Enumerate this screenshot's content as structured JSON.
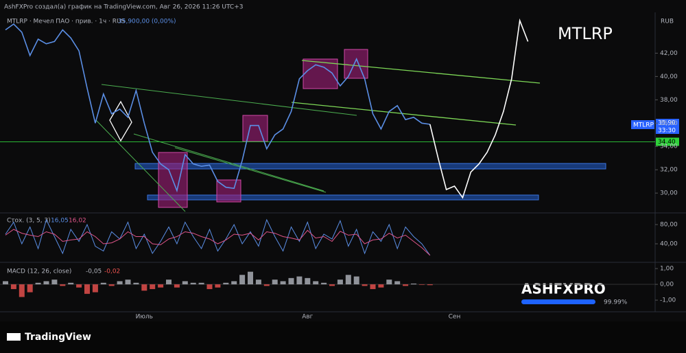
{
  "header": {
    "credit": "AshFXPro создал(а) график на TradingView.com, Авг 26, 2026 11:26 UTC+3",
    "currency": "RUB",
    "symbol": "MTLRP",
    "last_price": "35,90",
    "change": "0,00 (0,00%)",
    "countdown": "33:30",
    "level_label": "34,40"
  },
  "footer": {
    "logo": "TradingView",
    "badge": "ASHFXPRO",
    "badge_pct": "99.99%"
  },
  "chart_data": [
    {
      "type": "line",
      "title": "MTLRP · Мечел ПАО · прив. · 1ч · RUS",
      "annotation": "MTLRP",
      "categories": [
        null,
        null,
        null,
        null,
        null,
        null,
        null,
        null,
        null,
        null,
        null,
        null,
        null,
        null,
        null,
        null,
        null,
        "Июль",
        null,
        null,
        null,
        null,
        null,
        null,
        null,
        null,
        null,
        null,
        null,
        null,
        null,
        null,
        null,
        null,
        null,
        null,
        null,
        "Авг",
        null,
        null,
        null,
        null,
        null,
        null,
        null,
        null,
        null,
        null,
        null,
        null,
        null,
        null,
        null,
        null,
        null,
        "Сен",
        null,
        null,
        null,
        null,
        null,
        null,
        null,
        null,
        null
      ],
      "series": [
        {
          "color": "#5b8fe6",
          "values": [
            44.0,
            44.5,
            43.8,
            41.8,
            43.2,
            42.8,
            43.0,
            44.0,
            43.3,
            42.2,
            39.0,
            36.0,
            38.5,
            36.8,
            37.2,
            36.5,
            38.8,
            36.0,
            33.5,
            32.5,
            32.0,
            30.2,
            33.3,
            32.5,
            32.3,
            32.4,
            31.0,
            30.5,
            30.4,
            32.8,
            35.8,
            35.8,
            33.8,
            35.0,
            35.5,
            37.0,
            39.8,
            40.5,
            41.0,
            40.8,
            40.3,
            39.2,
            40.0,
            41.5,
            39.8,
            36.8,
            35.5,
            37.0,
            37.5,
            36.3,
            36.5,
            36.0,
            35.9,
            null,
            null,
            null,
            null,
            null,
            null,
            null,
            null,
            null,
            null,
            null,
            null
          ]
        },
        {
          "color": "#ffffff",
          "values": [
            null,
            null,
            null,
            null,
            null,
            null,
            null,
            null,
            null,
            null,
            null,
            null,
            null,
            null,
            null,
            null,
            null,
            null,
            null,
            null,
            null,
            null,
            null,
            null,
            null,
            null,
            null,
            null,
            null,
            null,
            null,
            null,
            null,
            null,
            null,
            null,
            null,
            null,
            null,
            null,
            null,
            null,
            null,
            null,
            null,
            null,
            null,
            null,
            null,
            null,
            null,
            null,
            35.9,
            33.0,
            30.3,
            30.6,
            29.6,
            31.8,
            32.5,
            33.5,
            35.0,
            37.0,
            39.8,
            44.8,
            43.0
          ]
        }
      ],
      "level": 34.4,
      "ylim": [
        28.3,
        45.5
      ],
      "yticks": [
        {
          "value": 30,
          "label": "30,00"
        },
        {
          "value": 32,
          "label": "32,00"
        },
        {
          "value": 34,
          "label": "34,00"
        },
        {
          "value": 36,
          "label": "36,00"
        },
        {
          "value": 38,
          "label": "38,00"
        },
        {
          "value": 40,
          "label": "40,00"
        },
        {
          "value": 42,
          "label": "42,00"
        }
      ]
    },
    {
      "type": "line",
      "title": "Стох. (3, 5, 3)",
      "legend_values": [
        "16,05",
        "16,02"
      ],
      "series": [
        {
          "color": "#5b8fe6",
          "values": [
            60,
            85,
            40,
            75,
            30,
            90,
            55,
            20,
            70,
            45,
            80,
            35,
            25,
            65,
            50,
            85,
            30,
            60,
            20,
            45,
            75,
            40,
            85,
            55,
            30,
            70,
            25,
            50,
            80,
            40,
            65,
            35,
            90,
            55,
            25,
            75,
            45,
            85,
            30,
            60,
            50,
            88,
            35,
            70,
            20,
            65,
            45,
            80,
            30,
            75,
            55,
            40,
            16.05
          ]
        },
        {
          "color": "#e0558a",
          "values": [
            58,
            70,
            62,
            58,
            55,
            65,
            60,
            45,
            48,
            50,
            65,
            55,
            40,
            42,
            50,
            65,
            55,
            55,
            40,
            38,
            50,
            55,
            65,
            62,
            55,
            50,
            40,
            48,
            60,
            58,
            62,
            48,
            65,
            62,
            55,
            52,
            48,
            68,
            52,
            55,
            45,
            66,
            58,
            60,
            40,
            48,
            50,
            62,
            52,
            58,
            45,
            32,
            16.02
          ]
        }
      ],
      "ylim": [
        10,
        101.4
      ],
      "yticks": [
        {
          "value": 80,
          "label": "80,00"
        },
        {
          "value": 40,
          "label": "40,00"
        }
      ]
    },
    {
      "type": "bar",
      "title": "MACD (12, 26, close)",
      "legend_values": [
        "-0,05",
        "-0,02"
      ],
      "up_color": "#b2b5be",
      "down_color": "#ef5350",
      "values": [
        0.2,
        -0.3,
        -0.8,
        -0.5,
        0.1,
        0.2,
        0.3,
        -0.1,
        0.1,
        -0.2,
        -0.6,
        -0.5,
        0.1,
        -0.1,
        0.2,
        0.3,
        0.1,
        -0.4,
        -0.3,
        -0.2,
        0.3,
        -0.2,
        0.2,
        0.1,
        0.1,
        -0.3,
        -0.2,
        0.1,
        0.2,
        0.6,
        0.8,
        0.3,
        -0.1,
        0.3,
        0.2,
        0.4,
        0.5,
        0.4,
        0.2,
        0.1,
        -0.1,
        0.3,
        0.6,
        0.5,
        -0.1,
        -0.3,
        -0.2,
        0.3,
        0.2,
        -0.1,
        0.05,
        -0.03,
        -0.05
      ],
      "ylim": [
        -1.65,
        1.22
      ],
      "yticks": [
        {
          "value": 1,
          "label": "1,00"
        },
        {
          "value": 0,
          "label": "0,00"
        },
        {
          "value": -1,
          "label": "-1,00"
        }
      ]
    }
  ]
}
